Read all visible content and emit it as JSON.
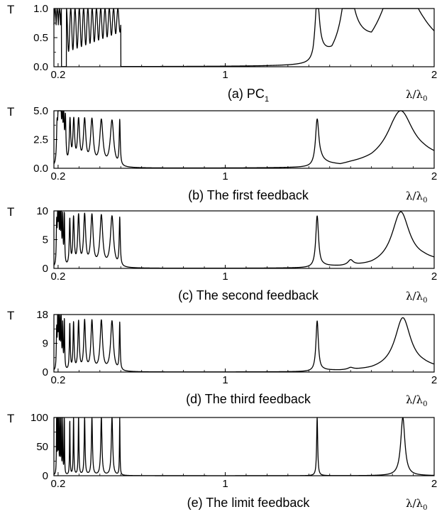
{
  "chart_data": [
    {
      "type": "line",
      "caption": "(a) PC",
      "caption_sub": "1",
      "ylabel": "T",
      "xlabel": "λ/λ",
      "xlabel_sub": "0",
      "xlim": [
        0.18,
        2.0
      ],
      "ylim": [
        0,
        1.0
      ],
      "yticks": [
        "0.0",
        "0.5",
        "1.0"
      ],
      "xticks": [
        "0.2",
        "1",
        "2"
      ],
      "bands": [
        [
          0.18,
          0.216,
          "dense",
          1.0
        ],
        [
          0.24,
          0.5,
          "osc",
          1.0
        ]
      ],
      "peaks": [
        [
          1.44,
          1.0,
          0.012
        ],
        [
          1.585,
          1.0,
          0.03
        ],
        [
          1.84,
          1.0,
          0.07
        ]
      ],
      "background": [
        [
          1.42,
          0.0
        ],
        [
          1.45,
          0.2
        ],
        [
          1.51,
          0.15
        ],
        [
          1.6,
          0.5
        ],
        [
          1.7,
          0.33
        ],
        [
          1.8,
          0.75
        ],
        [
          1.95,
          0.55
        ],
        [
          2.0,
          0.45
        ]
      ]
    },
    {
      "type": "line",
      "caption": "(b) The first feedback",
      "ylabel": "T",
      "xlabel": "λ/λ",
      "xlabel_sub": "0",
      "xlim": [
        0.18,
        2.0
      ],
      "ylim": [
        0,
        5.0
      ],
      "yticks": [
        "0.0",
        "2.5",
        "5.0"
      ],
      "xticks": [
        "0.2",
        "1",
        "2"
      ],
      "peaks": [
        [
          0.195,
          3.0,
          0.003
        ],
        [
          0.201,
          4.0,
          0.003
        ],
        [
          0.207,
          4.0,
          0.003
        ],
        [
          0.213,
          3.9,
          0.003
        ],
        [
          0.22,
          3.7,
          0.003
        ],
        [
          0.227,
          3.5,
          0.003
        ],
        [
          0.235,
          3.8,
          0.003
        ],
        [
          0.257,
          3.8,
          0.004
        ],
        [
          0.275,
          3.8,
          0.005
        ],
        [
          0.298,
          3.85,
          0.006
        ],
        [
          0.327,
          3.9,
          0.007
        ],
        [
          0.362,
          3.95,
          0.008
        ],
        [
          0.407,
          3.95,
          0.009
        ],
        [
          0.458,
          4.0,
          0.01
        ],
        [
          0.495,
          3.9,
          0.003
        ],
        [
          1.44,
          4.0,
          0.01
        ],
        [
          1.84,
          4.0,
          0.07
        ]
      ],
      "background": [
        [
          1.43,
          0.0
        ],
        [
          1.46,
          0.5
        ],
        [
          1.5,
          0.3
        ],
        [
          1.55,
          0.15
        ],
        [
          1.6,
          0.3
        ],
        [
          1.7,
          0.5
        ],
        [
          1.8,
          1.0
        ],
        [
          1.95,
          1.0
        ],
        [
          2.0,
          0.9
        ]
      ]
    },
    {
      "type": "line",
      "caption": "(c) The second feedback",
      "ylabel": "T",
      "xlabel": "λ/λ",
      "xlabel_sub": "0",
      "xlim": [
        0.18,
        2.0
      ],
      "ylim": [
        0,
        10
      ],
      "yticks": [
        "0",
        "5",
        "10"
      ],
      "xticks": [
        "0.2",
        "1",
        "2"
      ],
      "peaks": [
        [
          0.193,
          7.0,
          0.002
        ],
        [
          0.198,
          8.5,
          0.002
        ],
        [
          0.203,
          8.9,
          0.002
        ],
        [
          0.209,
          8.4,
          0.002
        ],
        [
          0.215,
          8.8,
          0.002
        ],
        [
          0.222,
          8.0,
          0.002
        ],
        [
          0.23,
          8.8,
          0.002
        ],
        [
          0.256,
          8.0,
          0.003
        ],
        [
          0.274,
          8.3,
          0.004
        ],
        [
          0.298,
          8.7,
          0.005
        ],
        [
          0.327,
          8.8,
          0.006
        ],
        [
          0.362,
          8.8,
          0.007
        ],
        [
          0.407,
          8.8,
          0.008
        ],
        [
          0.458,
          8.8,
          0.009
        ],
        [
          0.495,
          8.3,
          0.003
        ],
        [
          1.44,
          8.9,
          0.008
        ],
        [
          1.6,
          0.9,
          0.015
        ],
        [
          1.84,
          8.9,
          0.05
        ]
      ],
      "background": [
        [
          1.43,
          0.0
        ],
        [
          1.47,
          0.3
        ],
        [
          1.55,
          0.2
        ],
        [
          1.7,
          0.3
        ],
        [
          1.8,
          0.8
        ],
        [
          1.95,
          1.3
        ],
        [
          2.0,
          1.2
        ]
      ]
    },
    {
      "type": "line",
      "caption": "(d) The third feedback",
      "ylabel": "T",
      "xlabel": "λ/λ",
      "xlabel_sub": "0",
      "xlim": [
        0.18,
        2.0
      ],
      "ylim": [
        0,
        18
      ],
      "yticks": [
        "0",
        "9",
        "18"
      ],
      "xticks": [
        "0.2",
        "1",
        "2"
      ],
      "peaks": [
        [
          0.193,
          12.0,
          0.0018
        ],
        [
          0.198,
          15.8,
          0.0018
        ],
        [
          0.203,
          15.5,
          0.0018
        ],
        [
          0.209,
          14.5,
          0.0018
        ],
        [
          0.215,
          15.3,
          0.0018
        ],
        [
          0.222,
          13.5,
          0.0018
        ],
        [
          0.23,
          15.6,
          0.0018
        ],
        [
          0.256,
          14.5,
          0.0025
        ],
        [
          0.274,
          14.8,
          0.003
        ],
        [
          0.298,
          15.3,
          0.004
        ],
        [
          0.327,
          15.5,
          0.005
        ],
        [
          0.362,
          15.5,
          0.006
        ],
        [
          0.407,
          15.6,
          0.007
        ],
        [
          0.458,
          15.6,
          0.008
        ],
        [
          0.495,
          14.8,
          0.0025
        ],
        [
          1.44,
          15.7,
          0.007
        ],
        [
          1.6,
          0.6,
          0.015
        ],
        [
          1.85,
          15.7,
          0.045
        ]
      ],
      "background": [
        [
          1.43,
          0.0
        ],
        [
          1.47,
          0.4
        ],
        [
          1.55,
          0.3
        ],
        [
          1.7,
          0.5
        ],
        [
          1.8,
          1.2
        ],
        [
          1.95,
          1.5
        ],
        [
          2.0,
          1.2
        ]
      ]
    },
    {
      "type": "line",
      "caption": "(e) The limit feedback",
      "ylabel": "T",
      "xlabel": "λ/λ",
      "xlabel_sub": "0",
      "xlim": [
        0.18,
        2.0
      ],
      "ylim": [
        0,
        100
      ],
      "yticks": [
        "0",
        "50",
        "100"
      ],
      "xticks": [
        "0.2",
        "1",
        "2"
      ],
      "peaks": [
        [
          0.193,
          100,
          0.0012
        ],
        [
          0.198,
          100,
          0.0012
        ],
        [
          0.203,
          100,
          0.0012
        ],
        [
          0.209,
          100,
          0.0012
        ],
        [
          0.215,
          100,
          0.0012
        ],
        [
          0.222,
          100,
          0.0012
        ],
        [
          0.23,
          100,
          0.0012
        ],
        [
          0.256,
          95,
          0.0015
        ],
        [
          0.274,
          100,
          0.0018
        ],
        [
          0.298,
          100,
          0.002
        ],
        [
          0.327,
          100,
          0.0025
        ],
        [
          0.362,
          100,
          0.003
        ],
        [
          0.407,
          100,
          0.0035
        ],
        [
          0.458,
          100,
          0.004
        ],
        [
          0.495,
          100,
          0.0015
        ],
        [
          1.44,
          100,
          0.003
        ],
        [
          1.85,
          100,
          0.012
        ]
      ],
      "background": []
    }
  ]
}
